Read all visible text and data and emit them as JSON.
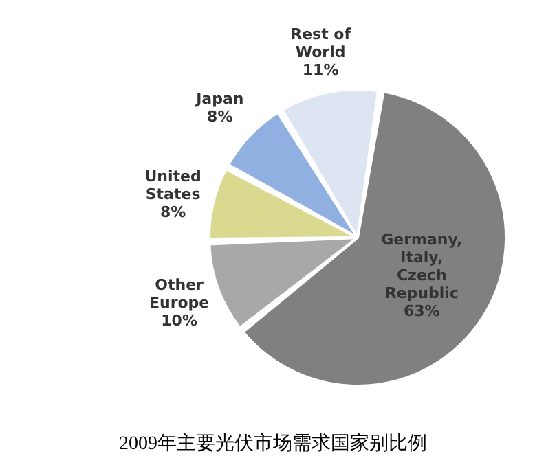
{
  "chart_data": {
    "type": "pie",
    "title": "2009年主要光伏市场需求国家别比例",
    "categories": [
      "Rest of World",
      "Japan",
      "United States",
      "Other Europe",
      "Germany, Italy, Czech Republic"
    ],
    "values": [
      11,
      8,
      8,
      10,
      63
    ],
    "value_labels": [
      "11%",
      "8%",
      "8%",
      "10%",
      "63%"
    ],
    "colors": [
      "#dde4f2",
      "#8fb0e0",
      "#d9d98f",
      "#a8a8a8",
      "#808080"
    ]
  }
}
